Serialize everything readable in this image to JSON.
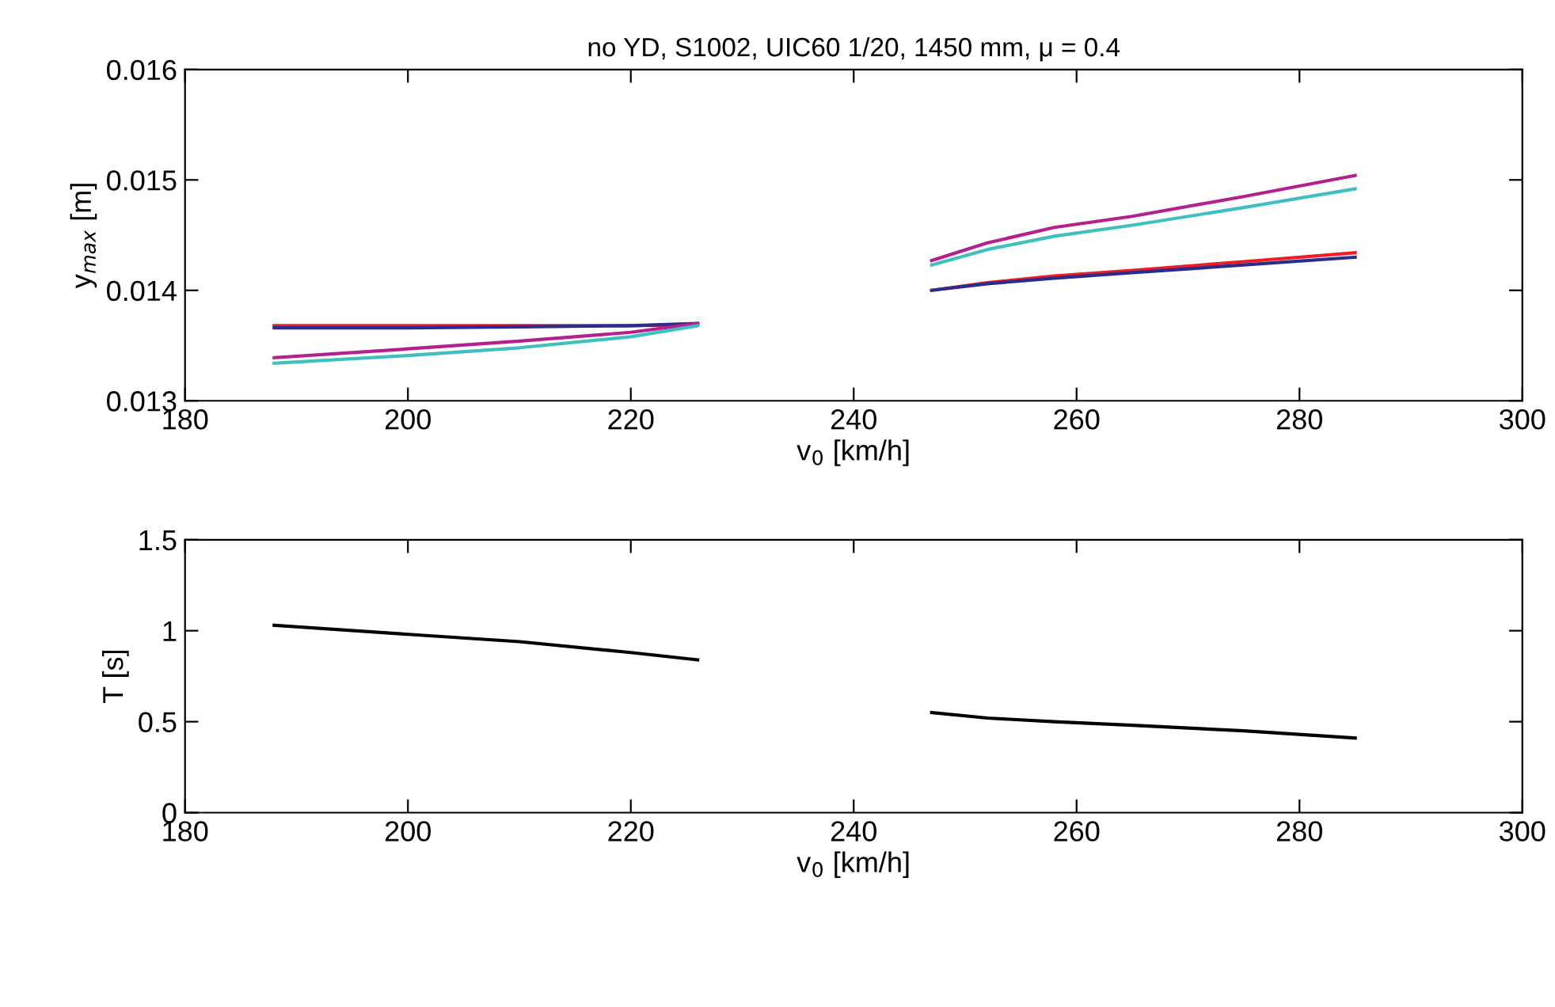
{
  "chart_data": [
    {
      "type": "line",
      "title": "no YD, S1002, UIC60 1/20, 1450 mm, μ = 0.4",
      "xlabel": "v$_{0}$ [km/h]",
      "ylabel": "y$_{max}$ [m]",
      "xlim": [
        180,
        300
      ],
      "xticks": [
        180,
        200,
        220,
        240,
        260,
        280,
        300
      ],
      "ylim": [
        0.013,
        0.016
      ],
      "yticks": [
        0.013,
        0.014,
        0.015,
        0.016
      ],
      "grid": false,
      "legend": false,
      "x": [
        188,
        200,
        210,
        220,
        226,
        236,
        247,
        252,
        258,
        265,
        275,
        285
      ],
      "series": [
        {
          "color": "#ee1c25",
          "values": [
            0.01368,
            0.01368,
            0.01368,
            0.01368,
            0.01369,
            null,
            0.014,
            0.01407,
            0.01413,
            0.01418,
            0.01426,
            0.01434
          ]
        },
        {
          "color": "#2b2d8e",
          "values": [
            0.01366,
            0.01366,
            0.01367,
            0.01368,
            0.0137,
            null,
            0.014,
            0.01406,
            0.01411,
            0.01416,
            0.01423,
            0.0143
          ]
        },
        {
          "color": "#b5208f",
          "values": [
            0.01339,
            0.01347,
            0.01354,
            0.01362,
            0.0137,
            null,
            0.01427,
            0.01443,
            0.01457,
            0.01467,
            0.01485,
            0.01504
          ]
        },
        {
          "color": "#3fbfbf",
          "values": [
            0.01334,
            0.01341,
            0.01348,
            0.01358,
            0.01368,
            null,
            0.01423,
            0.01437,
            0.01449,
            0.01459,
            0.01475,
            0.01492
          ]
        }
      ]
    },
    {
      "type": "line",
      "xlabel": "v$_{0}$ [km/h]",
      "ylabel": "T [s]",
      "xlim": [
        180,
        300
      ],
      "xticks": [
        180,
        200,
        220,
        240,
        260,
        280,
        300
      ],
      "ylim": [
        0,
        1.5
      ],
      "yticks": [
        0,
        0.5,
        1,
        1.5
      ],
      "grid": false,
      "legend": false,
      "x": [
        188,
        200,
        210,
        220,
        226,
        236,
        247,
        252,
        258,
        265,
        275,
        285
      ],
      "series": [
        {
          "color": "#000000",
          "values": [
            1.03,
            0.98,
            0.94,
            0.88,
            0.84,
            null,
            0.55,
            0.52,
            0.5,
            0.48,
            0.45,
            0.41
          ]
        }
      ]
    }
  ]
}
